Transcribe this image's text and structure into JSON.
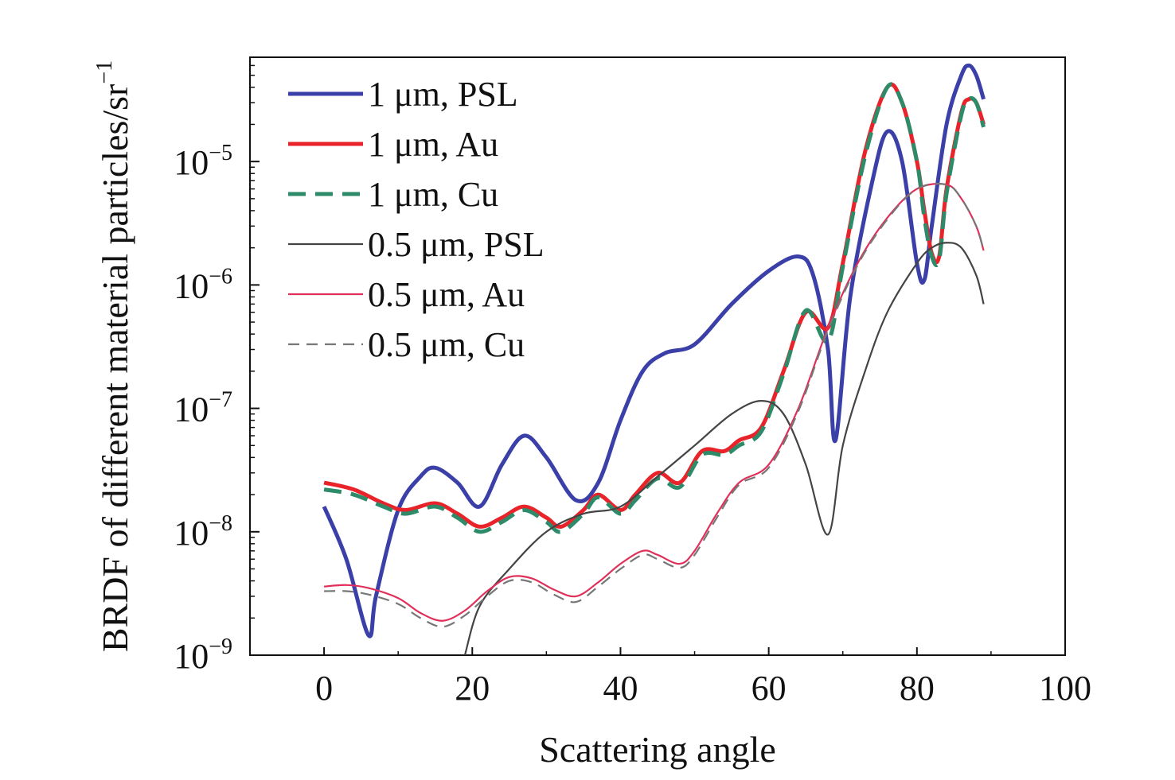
{
  "chart_data": {
    "type": "line",
    "title": "",
    "xlabel": "Scattering angle",
    "ylabel": "BRDF of different material particles/sr",
    "ylabel_superscript": "−1",
    "xlim": [
      -10,
      100
    ],
    "ylim": [
      1e-09,
      7e-05
    ],
    "yscale": "log",
    "xticks": [
      "0",
      "20",
      "40",
      "60",
      "80",
      "100"
    ],
    "yticks": [
      {
        "base": "10",
        "exp": "−9",
        "value": 1e-09
      },
      {
        "base": "10",
        "exp": "−8",
        "value": 1e-08
      },
      {
        "base": "10",
        "exp": "−7",
        "value": 1e-07
      },
      {
        "base": "10",
        "exp": "−6",
        "value": 1e-06
      },
      {
        "base": "10",
        "exp": "−5",
        "value": 1e-05
      }
    ],
    "grid": false,
    "legend_position": "top-left",
    "series": [
      {
        "name": "1 μm, PSL",
        "color": "#3b3fa8",
        "dash": "solid",
        "weight": "thick",
        "x": [
          0,
          3,
          6,
          7,
          10,
          13,
          15,
          18,
          21,
          24,
          27,
          30,
          34,
          37,
          40,
          43,
          46,
          50,
          55,
          60,
          64,
          66,
          68,
          69,
          71,
          74,
          76,
          78,
          80,
          81,
          82,
          84,
          86,
          87,
          88,
          89
        ],
        "y": [
          1.6e-08,
          6e-09,
          1.45e-09,
          3e-09,
          1.5e-08,
          2.8e-08,
          3.3e-08,
          2.5e-08,
          1.6e-08,
          3.5e-08,
          6e-08,
          4e-08,
          1.8e-08,
          2.5e-08,
          8e-08,
          2e-07,
          2.8e-07,
          3.3e-07,
          7e-07,
          1.3e-06,
          1.7e-06,
          1.2e-06,
          3e-07,
          5.5e-08,
          8e-07,
          7e-06,
          1.75e-05,
          1e-05,
          1.5e-06,
          1.1e-06,
          3e-06,
          2e-05,
          5e-05,
          6e-05,
          5e-05,
          3.2e-05
        ]
      },
      {
        "name": "1 μm, Au",
        "color": "#e8232a",
        "dash": "solid",
        "weight": "thick",
        "x": [
          0,
          4,
          8,
          11,
          15,
          18,
          21,
          24,
          27,
          30,
          32,
          35,
          37,
          40,
          42,
          45,
          48,
          51,
          54,
          56,
          59,
          62,
          65,
          68,
          70,
          73,
          76,
          78,
          80,
          81,
          82,
          83,
          84,
          86,
          87,
          88,
          89
        ],
        "y": [
          2.5e-08,
          2.2e-08,
          1.7e-08,
          1.5e-08,
          1.7e-08,
          1.4e-08,
          1.1e-08,
          1.3e-08,
          1.6e-08,
          1.3e-08,
          1.1e-08,
          1.5e-08,
          2e-08,
          1.5e-08,
          2e-08,
          3e-08,
          2.5e-08,
          4.5e-08,
          4.5e-08,
          5.5e-08,
          7e-08,
          2e-07,
          6e-07,
          4.5e-07,
          1.5e-06,
          1.2e-05,
          4e-05,
          3e-05,
          1e-05,
          4e-06,
          1.8e-06,
          1.7e-06,
          6e-06,
          2.5e-05,
          3.2e-05,
          3e-05,
          2e-05
        ]
      },
      {
        "name": "1 μm, Cu",
        "color": "#2e8b6a",
        "dash": "dashed",
        "weight": "thick",
        "x": [
          0,
          4,
          8,
          11,
          15,
          18,
          21,
          24,
          27,
          30,
          32,
          35,
          37,
          40,
          42,
          45,
          48,
          51,
          54,
          56,
          59,
          62,
          65,
          68,
          70,
          73,
          76,
          78,
          80,
          81,
          82,
          83,
          84,
          86,
          87,
          88,
          89
        ],
        "y": [
          2.2e-08,
          2e-08,
          1.6e-08,
          1.4e-08,
          1.6e-08,
          1.3e-08,
          1e-08,
          1.2e-08,
          1.5e-08,
          1.2e-08,
          1e-08,
          1.4e-08,
          1.9e-08,
          1.4e-08,
          1.8e-08,
          2.7e-08,
          2.3e-08,
          4.2e-08,
          4.2e-08,
          5e-08,
          6.5e-08,
          1.9e-07,
          6.2e-07,
          3.5e-07,
          1.4e-06,
          1.1e-05,
          4e-05,
          3e-05,
          1e-05,
          3.5e-06,
          1.7e-06,
          1.6e-06,
          5.5e-06,
          2.4e-05,
          3.2e-05,
          3e-05,
          1.9e-05
        ]
      },
      {
        "name": "0.5 μm, PSL",
        "color": "#444444",
        "dash": "solid",
        "weight": "thin",
        "x": [
          19,
          21,
          25,
          30,
          35,
          40,
          45,
          50,
          55,
          59,
          62,
          65,
          68,
          70,
          73,
          76,
          80,
          82,
          84,
          86,
          88,
          89
        ],
        "y": [
          1e-09,
          2.5e-09,
          5e-09,
          1e-08,
          1.4e-08,
          1.6e-08,
          2.8e-08,
          5e-08,
          9e-08,
          1.15e-07,
          9e-08,
          3.5e-08,
          9.5e-09,
          5e-08,
          2e-07,
          6e-07,
          1.5e-06,
          2e-06,
          2.2e-06,
          2e-06,
          1.2e-06,
          7e-07
        ]
      },
      {
        "name": "0.5 μm, Au",
        "color": "#e0305a",
        "dash": "solid",
        "weight": "thin",
        "x": [
          0,
          3,
          6,
          10,
          13,
          16,
          19,
          22,
          25,
          28,
          31,
          34,
          37,
          40,
          43,
          45,
          48,
          50,
          53,
          56,
          60,
          64,
          68,
          72,
          76,
          80,
          84,
          86,
          88,
          89
        ],
        "y": [
          3.6e-09,
          3.7e-09,
          3.5e-09,
          2.9e-09,
          2.2e-09,
          1.9e-09,
          2.3e-09,
          3.3e-09,
          4.3e-09,
          4.2e-09,
          3.4e-09,
          3e-09,
          3.9e-09,
          5.5e-09,
          7e-09,
          6.5e-09,
          5.5e-09,
          7e-09,
          1.4e-08,
          2.5e-08,
          3.5e-08,
          1e-07,
          4.5e-07,
          1.5e-06,
          3.5e-06,
          6e-06,
          6.5e-06,
          5e-06,
          3e-06,
          1.9e-06
        ]
      },
      {
        "name": "0.5 μm, Cu",
        "color": "#777777",
        "dash": "dashed",
        "weight": "thin",
        "x": [
          0,
          3,
          6,
          10,
          13,
          16,
          19,
          22,
          25,
          28,
          31,
          34,
          37,
          40,
          43,
          45,
          48,
          50,
          53,
          56,
          60,
          64,
          68,
          72,
          76,
          80,
          84,
          86,
          88,
          89
        ],
        "y": [
          3.3e-09,
          3.3e-09,
          3.1e-09,
          2.6e-09,
          2e-09,
          1.7e-09,
          2.1e-09,
          3e-09,
          4e-09,
          3.9e-09,
          3.1e-09,
          2.7e-09,
          3.6e-09,
          5e-09,
          6.5e-09,
          6e-09,
          5.1e-09,
          6.5e-09,
          1.3e-08,
          2.4e-08,
          3.3e-08,
          9.5e-08,
          4.3e-07,
          1.45e-06,
          3.4e-06,
          6e-06,
          6.5e-06,
          5e-06,
          3e-06,
          1.9e-06
        ]
      }
    ]
  }
}
